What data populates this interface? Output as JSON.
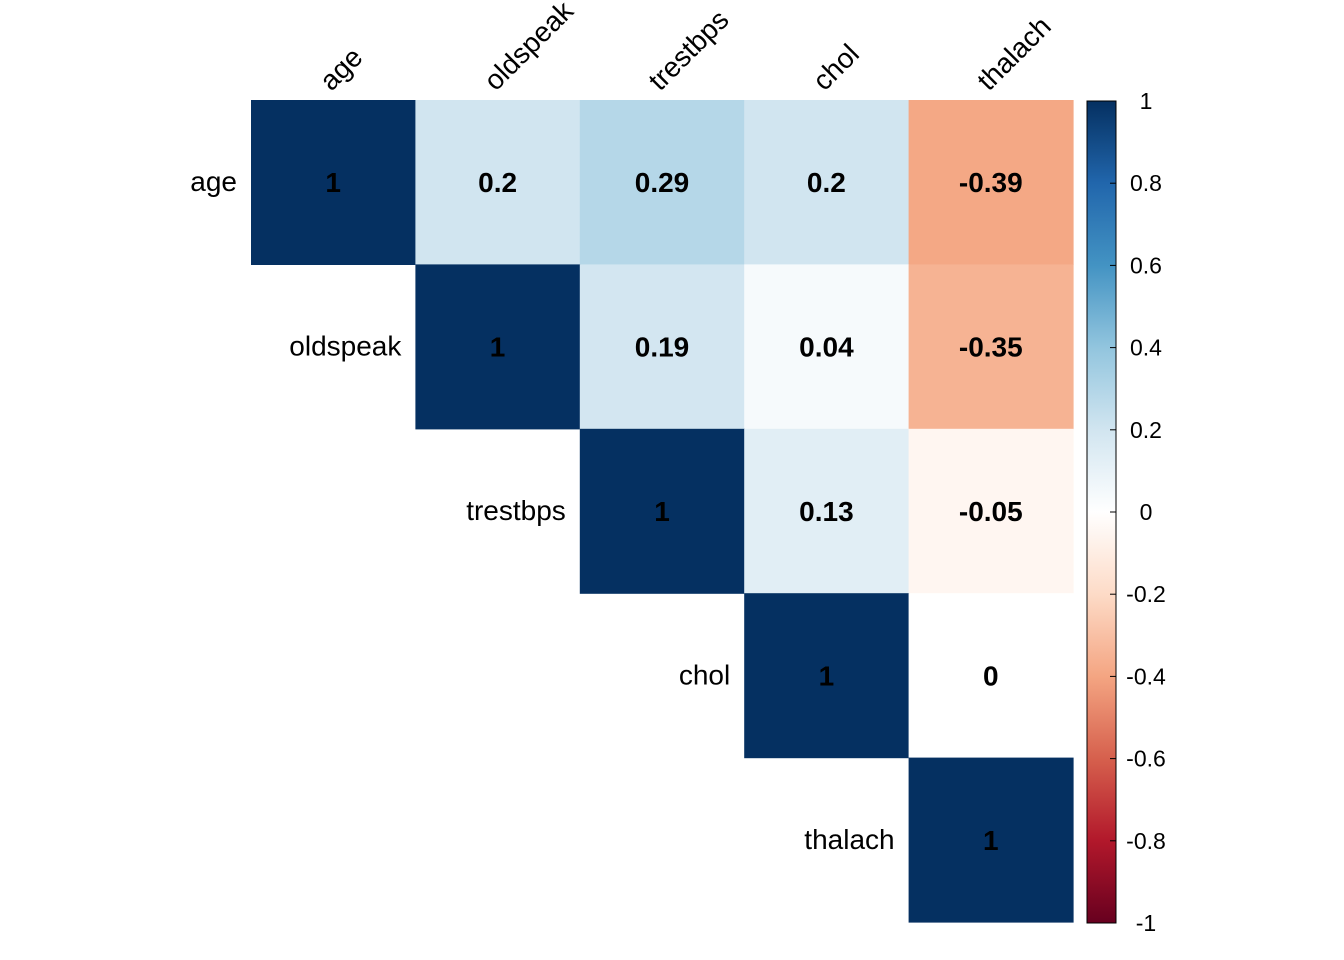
{
  "chart_data": {
    "type": "heatmap",
    "layout": "upper-triangle",
    "variables": [
      "age",
      "oldspeak",
      "trestbps",
      "chol",
      "thalach"
    ],
    "matrix": [
      [
        1,
        0.2,
        0.29,
        0.2,
        -0.39
      ],
      [
        null,
        1,
        0.19,
        0.04,
        -0.35
      ],
      [
        null,
        null,
        1,
        0.13,
        -0.05
      ],
      [
        null,
        null,
        null,
        1,
        0
      ],
      [
        null,
        null,
        null,
        null,
        1
      ]
    ],
    "cell_labels": [
      [
        "1",
        "0.2",
        "0.29",
        "0.2",
        "-0.39"
      ],
      [
        "",
        "1",
        "0.19",
        "0.04",
        "-0.35"
      ],
      [
        "",
        "",
        "1",
        "0.13",
        "-0.05"
      ],
      [
        "",
        "",
        "",
        "1",
        "0"
      ],
      [
        "",
        "",
        "",
        "",
        "1"
      ]
    ],
    "color_scale": {
      "range": [
        -1,
        1
      ],
      "stops": [
        {
          "value": -1,
          "color": "#67001F"
        },
        {
          "value": -0.8,
          "color": "#B2182B"
        },
        {
          "value": -0.6,
          "color": "#D6604D"
        },
        {
          "value": -0.4,
          "color": "#F4A582"
        },
        {
          "value": -0.2,
          "color": "#FDDBC7"
        },
        {
          "value": 0,
          "color": "#FFFFFF"
        },
        {
          "value": 0.2,
          "color": "#D1E5F0"
        },
        {
          "value": 0.4,
          "color": "#92C5DE"
        },
        {
          "value": 0.6,
          "color": "#4393C3"
        },
        {
          "value": 0.8,
          "color": "#2166AC"
        },
        {
          "value": 1,
          "color": "#053061"
        }
      ],
      "ticks": [
        "1",
        "0.8",
        "0.6",
        "0.4",
        "0.2",
        "0",
        "-0.2",
        "-0.4",
        "-0.6",
        "-0.8",
        "-1"
      ]
    },
    "legend_position": "right",
    "grid": false
  }
}
